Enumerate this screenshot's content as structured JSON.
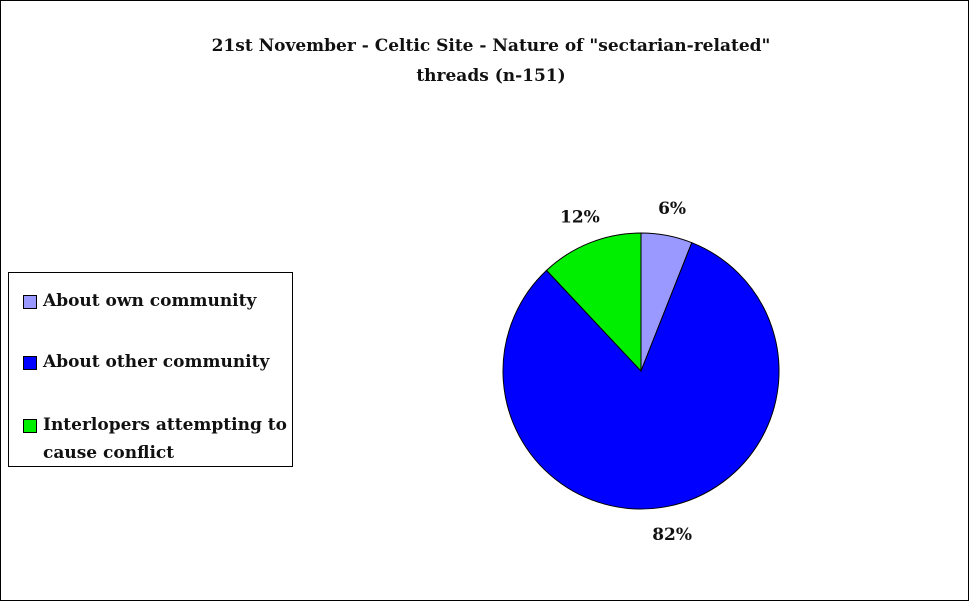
{
  "chart_data": {
    "type": "pie",
    "title": "21st November - Celtic Site - Nature of \"sectarian-related\" threads (n-151)",
    "title_lines": [
      "21st November - Celtic Site - Nature of \"sectarian-related\"",
      "threads (n-151)"
    ],
    "legend_position": "left",
    "slices": [
      {
        "name": "About own community",
        "value": 6,
        "label": "6%",
        "color": "#9999ff"
      },
      {
        "name": "About other community",
        "value": 82,
        "label": "82%",
        "color": "#0000ff"
      },
      {
        "name": "Interlopers attempting to cause conflict",
        "value": 12,
        "label": "12%",
        "color": "#00ee00"
      }
    ]
  }
}
